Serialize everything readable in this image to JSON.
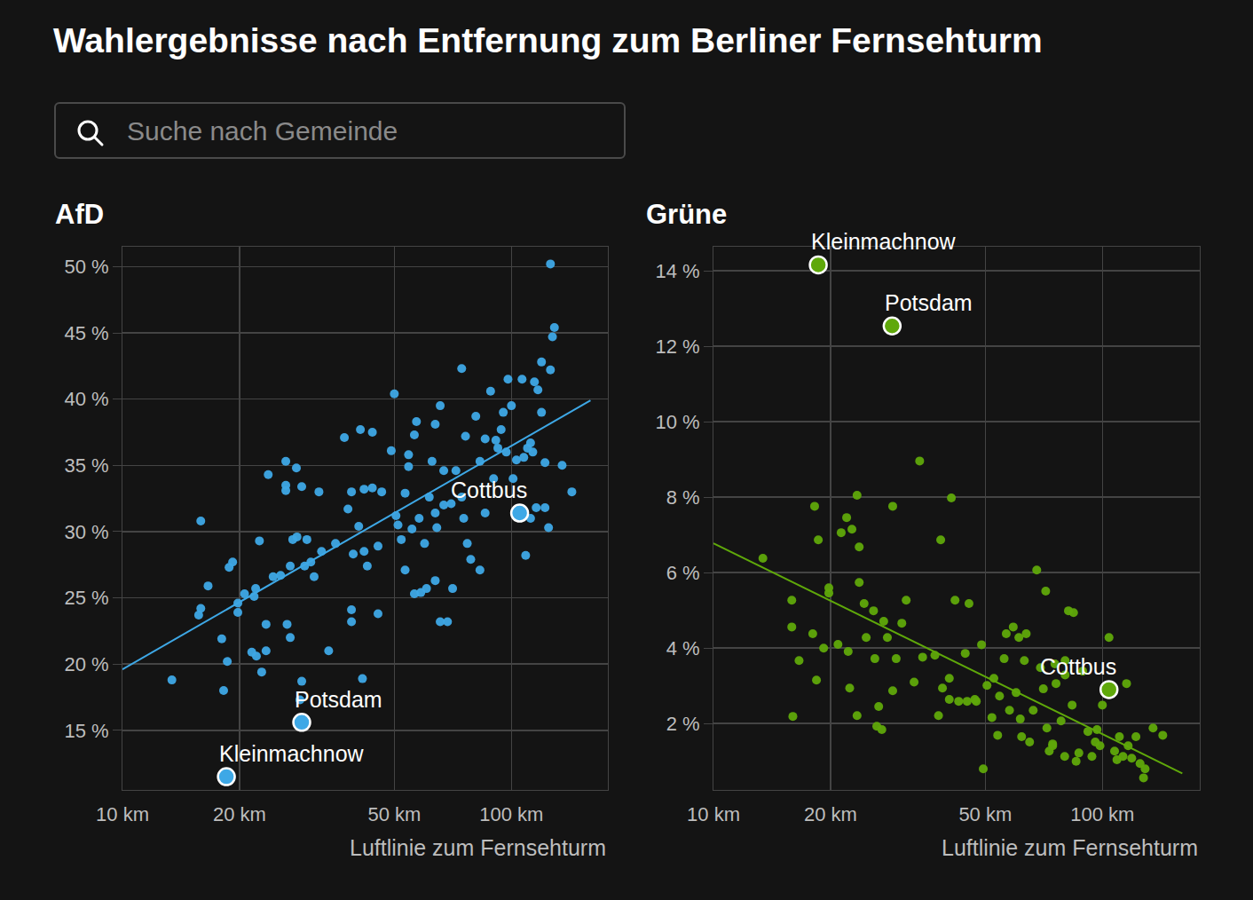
{
  "title": "Wahlergebnisse nach Entfernung zum Berliner Fernsehturm",
  "search_placeholder": "Suche nach Gemeinde",
  "chart_data": [
    {
      "type": "scatter",
      "title": "AfD",
      "xlabel": "Luftlinie zum Fernsehturm",
      "log": "x",
      "grid": true,
      "xlim": [
        10,
        177
      ],
      "xticks": [
        {
          "value": 10,
          "label": "10 km"
        },
        {
          "value": 20,
          "label": "20 km"
        },
        {
          "value": 50,
          "label": "50 km"
        },
        {
          "value": 100,
          "label": "100 km"
        }
      ],
      "ylim": [
        10.5,
        51.5
      ],
      "yticks": [
        {
          "value": 15,
          "label": "15 %"
        },
        {
          "value": 20,
          "label": "20 %"
        },
        {
          "value": 25,
          "label": "25 %"
        },
        {
          "value": 30,
          "label": "30 %"
        },
        {
          "value": 35,
          "label": "35 %"
        },
        {
          "value": 40,
          "label": "40 %"
        },
        {
          "value": 45,
          "label": "45 %"
        },
        {
          "value": 50,
          "label": "50 %"
        }
      ],
      "series": [
        {
          "type": "scatter",
          "color": "#3ea8e6",
          "x": [
            13.4,
            15.9,
            15.9,
            15.7,
            16.6,
            18,
            18.2,
            18.6,
            18.8,
            19.2,
            19.8,
            19.8,
            20.6,
            21.8,
            22,
            22.5,
            21.5,
            22.1,
            22.8,
            23.4,
            23.4,
            23.7,
            24.4,
            25.5,
            26.3,
            26.3,
            26.3,
            28,
            28.9,
            27,
            26.5,
            27,
            27.4,
            28.1,
            28.6,
            29.8,
            29.4,
            30.5,
            31.1,
            28.9,
            32.5,
            33.9,
            35.3,
            37.2,
            38,
            38.8,
            38.8,
            38.8,
            39.2,
            40.5,
            40.9,
            41.4,
            41.8,
            41.8,
            43.9,
            43.9,
            45.4,
            45.4,
            46.4,
            49.1,
            50,
            50.5,
            51.1,
            52.1,
            53.3,
            54.4,
            54.4,
            56.3,
            56.3,
            57,
            57.9,
            58.5,
            59.8,
            60.5,
            61.5,
            63.7,
            63.7,
            64.3,
            65.6,
            65.6,
            67,
            68.5,
            70.6,
            72,
            74.5,
            75.4,
            76.2,
            77,
            78.6,
            81,
            83,
            83,
            85.6,
            88.4,
            90,
            91.2,
            94.1,
            95.3,
            98,
            100,
            101,
            103,
            106.5,
            108.8,
            110,
            112,
            114.6,
            115.8,
            117,
            119.5,
            119.5,
            122,
            124.6,
            126,
            126,
            127.5,
            129,
            135,
            143,
            122,
            112,
            67,
            62.5,
            85.6,
            92.3,
            97,
            107.6,
            113.5,
            63.7,
            70,
            53.3,
            55.5,
            32,
            42.6,
            74.5
          ],
          "values": [
            18.8,
            30.8,
            24.2,
            23.7,
            25.9,
            21.9,
            18,
            20.2,
            27.3,
            27.7,
            23.9,
            24.6,
            25.3,
            25.1,
            25.7,
            29.3,
            20.9,
            20.6,
            19.4,
            21,
            23,
            34.3,
            26.6,
            26.7,
            35.3,
            33.5,
            33.1,
            34.8,
            33.4,
            27.4,
            23,
            22,
            29.4,
            29.6,
            17.3,
            29.4,
            27.4,
            27.7,
            26.6,
            18.7,
            28.5,
            21,
            29.1,
            37.1,
            31.7,
            33,
            23.2,
            24.1,
            28.3,
            30.4,
            37.7,
            18.9,
            28.5,
            33.2,
            33.3,
            37.5,
            23.8,
            28.9,
            33,
            36.1,
            40.4,
            31.2,
            30.5,
            29.4,
            32.9,
            34.9,
            35.8,
            37.3,
            25.3,
            38.3,
            31,
            25.4,
            29.1,
            25.7,
            32.6,
            26.3,
            38.1,
            30.3,
            23.2,
            39.5,
            32,
            23.2,
            25.7,
            34.6,
            42.3,
            31,
            37.2,
            29.1,
            27.9,
            38.7,
            27.1,
            35.3,
            31.4,
            40.6,
            34,
            36.9,
            37.7,
            39,
            41.5,
            39.5,
            34,
            35.4,
            41.5,
            28.2,
            36.3,
            36.7,
            41.3,
            31.8,
            40.7,
            42.8,
            39,
            35.2,
            30.3,
            50.2,
            42.2,
            44.7,
            45.4,
            35,
            33,
            31.8,
            31,
            34.6,
            35.3,
            37,
            36.3,
            36,
            35.6,
            36,
            31.4,
            32.1,
            27.1,
            30.2,
            33,
            27.4,
            32.6
          ]
        },
        {
          "type": "line",
          "color": "#3ea8e6",
          "x": [
            10,
            159.7
          ],
          "values": [
            19.6,
            39.9
          ]
        }
      ],
      "annotations": [
        {
          "text": "Potsdam",
          "x": 28.9,
          "y": 15.6
        },
        {
          "text": "Kleinmachnow",
          "x": 18.5,
          "y": 11.5
        },
        {
          "text": "Cottbus",
          "x": 105,
          "y": 31.4
        }
      ]
    },
    {
      "type": "scatter",
      "title": "Grüne",
      "xlabel": "Luftlinie zum Fernsehturm",
      "log": "x",
      "grid": true,
      "xlim": [
        10,
        178
      ],
      "xticks": [
        {
          "value": 10,
          "label": "10 km"
        },
        {
          "value": 20,
          "label": "20 km"
        },
        {
          "value": 50,
          "label": "50 km"
        },
        {
          "value": 100,
          "label": "100 km"
        }
      ],
      "ylim": [
        0.24,
        14.64
      ],
      "yticks": [
        {
          "value": 2,
          "label": "2 %"
        },
        {
          "value": 4,
          "label": "4 %"
        },
        {
          "value": 6,
          "label": "6 %"
        },
        {
          "value": 8,
          "label": "8 %"
        },
        {
          "value": 10,
          "label": "10 %"
        },
        {
          "value": 12,
          "label": "12 %"
        },
        {
          "value": 14,
          "label": "14 %"
        }
      ],
      "series": [
        {
          "type": "scatter",
          "color": "#5fa80a",
          "x": [
            13.4,
            15.9,
            15.9,
            16.6,
            16,
            18.2,
            18.6,
            18,
            18.4,
            19.8,
            19.8,
            19.2,
            20.9,
            21.3,
            22.2,
            22,
            22.7,
            23.4,
            23.7,
            23.7,
            23.4,
            22.4,
            24.4,
            24.7,
            25.8,
            26,
            26.6,
            27.1,
            26.3,
            27.4,
            28,
            28.9,
            28.9,
            29.5,
            30.5,
            31.3,
            32.8,
            33.9,
            34.5,
            37.1,
            38.4,
            37.9,
            38.8,
            40.4,
            40.9,
            41.8,
            44.4,
            45.4,
            44.9,
            47,
            48.9,
            49.4,
            50.5,
            52.6,
            53.8,
            54.4,
            55.9,
            56.6,
            59,
            61,
            63.7,
            60,
            61.5,
            65,
            66.4,
            67.8,
            70.5,
            71.5,
            74.5,
            76,
            78.3,
            80.2,
            81.8,
            83.6,
            87,
            89,
            91.8,
            95.9,
            100,
            104,
            107.5,
            110.6,
            113,
            115.4,
            119,
            122,
            125,
            127.6,
            128.8,
            135,
            143,
            72,
            74.5,
            80,
            85.6,
            94,
            96.9,
            109,
            116.5,
            98.6,
            62,
            57.7,
            52,
            47.4,
            42.7,
            40.4,
            80.2,
            75.5,
            69.3,
            84.3,
            63,
            73
          ],
          "values": [
            6.38,
            5.27,
            4.56,
            3.67,
            2.19,
            7.76,
            6.87,
            4.38,
            3.15,
            5.6,
            5.46,
            4.0,
            4.1,
            7.06,
            3.91,
            7.46,
            7.15,
            8.05,
            6.68,
            5.74,
            2.21,
            2.94,
            5.18,
            4.28,
            4.99,
            3.72,
            2.45,
            1.84,
            1.93,
            4.71,
            4.28,
            7.76,
            2.87,
            3.72,
            4.66,
            5.27,
            3.1,
            8.96,
            3.76,
            3.81,
            6.87,
            2.21,
            2.94,
            3.2,
            7.98,
            5.27,
            3.86,
            5.18,
            2.59,
            2.64,
            4.09,
            0.8,
            3.01,
            3.2,
            1.69,
            2.73,
            3.72,
            4.38,
            4.56,
            4.28,
            4.38,
            2.82,
            2.12,
            1.51,
            2.35,
            6.07,
            2.92,
            5.51,
            1.41,
            3.06,
            2.07,
            3.29,
            4.99,
            2.49,
            1.22,
            3.39,
            1.79,
            1.51,
            2.49,
            4.28,
            1.27,
            1.65,
            1.13,
            3.06,
            1.08,
            1.65,
            0.94,
            0.56,
            0.8,
            1.88,
            1.69,
            1.88,
            1.46,
            1.13,
            1,
            1.13,
            1.84,
            1.04,
            1.41,
            1.41,
            1.65,
            2.35,
            2.16,
            2.59,
            2.59,
            2.64,
            3.67,
            3.58,
            3.48,
            4.94,
            3.67,
            1.27
          ]
        },
        {
          "type": "line",
          "color": "#5fa80a",
          "x": [
            10,
            160.5
          ],
          "values": [
            6.78,
            0.68
          ]
        }
      ],
      "annotations": [
        {
          "text": "Kleinmachnow",
          "x": 18.6,
          "y": 14.16
        },
        {
          "text": "Potsdam",
          "x": 28.8,
          "y": 12.54
        },
        {
          "text": "Cottbus",
          "x": 104,
          "y": 2.9
        }
      ]
    }
  ]
}
